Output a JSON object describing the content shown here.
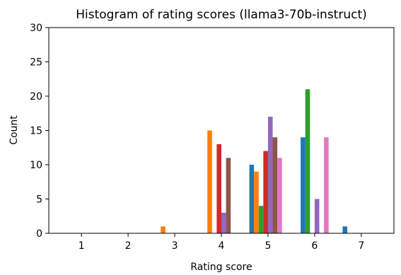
{
  "chart_data": {
    "type": "bar",
    "title": "Histogram of rating scores (llama3-70b-instruct)",
    "xlabel": "Rating score",
    "ylabel": "Count",
    "xlim": [
      0.3,
      7.7
    ],
    "ylim": [
      0,
      30
    ],
    "xticks": [
      1,
      2,
      3,
      4,
      5,
      6,
      7
    ],
    "yticks": [
      0,
      5,
      10,
      15,
      20,
      25,
      30
    ],
    "grid": false,
    "bar_width": 0.1,
    "series": [
      {
        "color": "#1f77b4",
        "points": [
          {
            "x": 4.65,
            "y": 10
          },
          {
            "x": 5.75,
            "y": 14
          },
          {
            "x": 6.65,
            "y": 1
          }
        ]
      },
      {
        "color": "#ff7f0e",
        "points": [
          {
            "x": 2.75,
            "y": 1
          },
          {
            "x": 3.75,
            "y": 15
          },
          {
            "x": 4.75,
            "y": 9
          }
        ]
      },
      {
        "color": "#2ca02c",
        "points": [
          {
            "x": 4.85,
            "y": 4
          },
          {
            "x": 5.85,
            "y": 21
          }
        ]
      },
      {
        "color": "#d62728",
        "points": [
          {
            "x": 3.95,
            "y": 13
          },
          {
            "x": 4.95,
            "y": 12
          }
        ]
      },
      {
        "color": "#9467bd",
        "points": [
          {
            "x": 4.05,
            "y": 3
          },
          {
            "x": 5.05,
            "y": 17
          },
          {
            "x": 6.05,
            "y": 5
          }
        ]
      },
      {
        "color": "#8c564b",
        "points": [
          {
            "x": 4.15,
            "y": 11
          },
          {
            "x": 5.15,
            "y": 14
          }
        ]
      },
      {
        "color": "#e377c2",
        "points": [
          {
            "x": 5.25,
            "y": 11
          },
          {
            "x": 6.25,
            "y": 14
          }
        ]
      }
    ]
  }
}
